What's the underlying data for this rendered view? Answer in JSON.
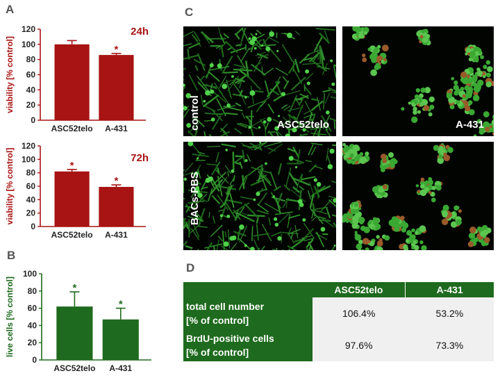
{
  "panels": {
    "a": {
      "letter": "A"
    },
    "b": {
      "letter": "B"
    },
    "c": {
      "letter": "C"
    },
    "d": {
      "letter": "D"
    }
  },
  "chart_data": [
    {
      "type": "bar",
      "title": "24h",
      "ylabel": "viability [% control]",
      "categories": [
        "ASC52telo",
        "A-431"
      ],
      "values": [
        100,
        86
      ],
      "errors": [
        5,
        2
      ],
      "significance": [
        "",
        "*"
      ],
      "yticks": [
        0,
        20,
        40,
        60,
        80,
        100,
        120
      ],
      "ylim": [
        0,
        120
      ],
      "color": "#a81313"
    },
    {
      "type": "bar",
      "title": "72h",
      "ylabel": "viability [% control]",
      "categories": [
        "ASC52telo",
        "A-431"
      ],
      "values": [
        82,
        59
      ],
      "errors": [
        3,
        3
      ],
      "significance": [
        "*",
        "*"
      ],
      "yticks": [
        0,
        20,
        40,
        60,
        80,
        100,
        120
      ],
      "ylim": [
        0,
        120
      ],
      "color": "#a81313"
    },
    {
      "type": "bar",
      "title": "",
      "ylabel": "live cells [% control]",
      "categories": [
        "ASC52telo",
        "A-431"
      ],
      "values": [
        62,
        47
      ],
      "errors": [
        17,
        13
      ],
      "significance": [
        "*",
        "*"
      ],
      "yticks": [
        0,
        20,
        40,
        60,
        80,
        100
      ],
      "ylim": [
        0,
        100
      ],
      "color": "#1e6a1e"
    }
  ],
  "micrographs": {
    "row_labels": [
      "control",
      "BACs-PBS"
    ],
    "image_labels": [
      "ASC52telo",
      "A-431"
    ]
  },
  "table": {
    "columns": [
      "ASC52telo",
      "A-431"
    ],
    "rows": [
      {
        "label_line1": "total cell number",
        "label_line2": "[% of control]",
        "values": [
          "106.4%",
          "53.2%"
        ]
      },
      {
        "label_line1": "BrdU-positive cells",
        "label_line2": "[% of control]",
        "values": [
          "97.6%",
          "73.3%"
        ]
      }
    ]
  }
}
